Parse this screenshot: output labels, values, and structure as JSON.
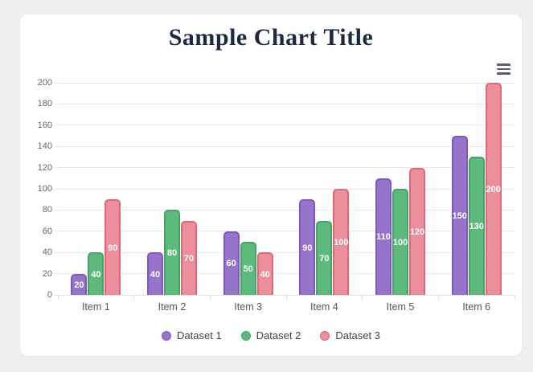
{
  "page": {
    "background": "#f0f0f0",
    "card_background": "#ffffff"
  },
  "header": {
    "menu_icon": "hamburger-menu-icon",
    "menu_icon_color": "#566270"
  },
  "chart_data": {
    "type": "bar",
    "title": "Sample Chart Title",
    "title_color": "#1c2942",
    "categories": [
      "Item 1",
      "Item 2",
      "Item 3",
      "Item 4",
      "Item 5",
      "Item 6"
    ],
    "series": [
      {
        "name": "Dataset 1",
        "fill": "#9574c9",
        "border": "#7e57c2",
        "values": [
          20,
          40,
          60,
          90,
          110,
          150
        ]
      },
      {
        "name": "Dataset 2",
        "fill": "#5dba7c",
        "border": "#42a567",
        "values": [
          40,
          80,
          50,
          70,
          100,
          130
        ]
      },
      {
        "name": "Dataset 3",
        "fill": "#ea8f9b",
        "border": "#e26476",
        "values": [
          90,
          70,
          40,
          100,
          120,
          200
        ]
      }
    ],
    "ylim": [
      0,
      200
    ],
    "ytick_step": 20,
    "grid": true,
    "legend_position": "bottom",
    "value_labels": "white, bold, centered inside bars",
    "grid_color": "#e9e9e9",
    "axis_text_color": "#666666",
    "value_label_color": "#ffffff"
  }
}
